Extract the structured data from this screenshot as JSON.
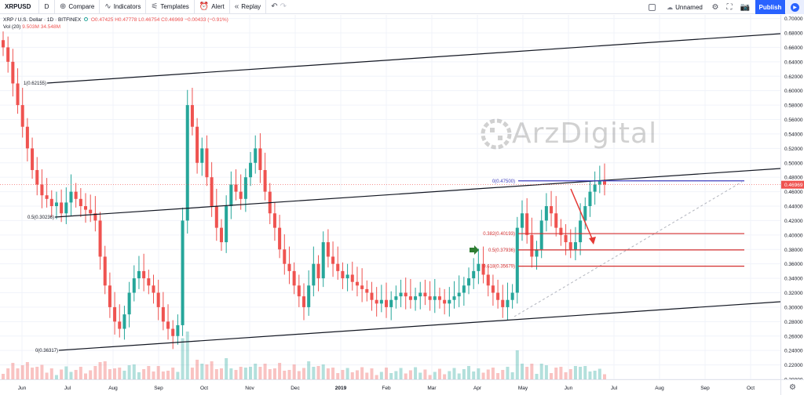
{
  "toolbar": {
    "symbol": "XRPUSD",
    "interval": "D",
    "compare": "Compare",
    "indicators": "Indicators",
    "templates": "Templates",
    "alert": "Alert",
    "replay": "Replay",
    "layout_name": "Unnamed",
    "publish": "Publish"
  },
  "legend": {
    "title": "XRP / U.S. Dollar · 1D · BITFINEX",
    "open": "O0.47425",
    "high": "H0.47778",
    "low": "L0.46754",
    "close": "C0.46969",
    "change": "−0.00433 (−0.91%)",
    "volume_label": "Vol (20)",
    "volume_value": "9.503M",
    "volume_ma": "34.548M"
  },
  "watermark": "ArzDigital",
  "colors": {
    "up": "#26a69a",
    "down": "#ef5350",
    "fib_top": "#3f3fbf",
    "fib": "#d32f2f",
    "channel": "#131722",
    "last_price": "#ef5350"
  },
  "chart_data": {
    "type": "candlestick",
    "symbol": "XRP / U.S. Dollar",
    "interval": "1D",
    "exchange": "BITFINEX",
    "time_labels": [
      "Jun",
      "Jul",
      "Aug",
      "Sep",
      "Oct",
      "Nov",
      "Dec",
      "2019",
      "Feb",
      "Mar",
      "Apr",
      "May",
      "Jun",
      "Jul",
      "Aug",
      "Sep",
      "Oct"
    ],
    "price_labels": [
      "0.70000",
      "0.68000",
      "0.66000",
      "0.64000",
      "0.62000",
      "0.60000",
      "0.58000",
      "0.56000",
      "0.54000",
      "0.52000",
      "0.50000",
      "0.48000",
      "0.46000",
      "0.44000",
      "0.42000",
      "0.40000",
      "0.38000",
      "0.36000",
      "0.34000",
      "0.32000",
      "0.30000",
      "0.28000",
      "0.26000",
      "0.24000",
      "0.22000",
      "0.20000"
    ],
    "ylim": [
      0.2,
      0.705
    ],
    "last_price": "0.46969",
    "close_series": [
      0.66,
      0.64,
      0.61,
      0.58,
      0.55,
      0.52,
      0.49,
      0.47,
      0.455,
      0.45,
      0.44,
      0.445,
      0.43,
      0.445,
      0.46,
      0.45,
      0.44,
      0.435,
      0.43,
      0.42,
      0.37,
      0.33,
      0.3,
      0.28,
      0.27,
      0.29,
      0.32,
      0.34,
      0.35,
      0.34,
      0.33,
      0.32,
      0.3,
      0.28,
      0.27,
      0.26,
      0.275,
      0.42,
      0.58,
      0.55,
      0.5,
      0.52,
      0.48,
      0.44,
      0.41,
      0.39,
      0.44,
      0.47,
      0.46,
      0.45,
      0.48,
      0.5,
      0.52,
      0.49,
      0.46,
      0.43,
      0.41,
      0.38,
      0.36,
      0.35,
      0.33,
      0.315,
      0.3,
      0.33,
      0.36,
      0.34,
      0.39,
      0.37,
      0.36,
      0.35,
      0.34,
      0.345,
      0.335,
      0.33,
      0.325,
      0.32,
      0.31,
      0.305,
      0.31,
      0.3,
      0.31,
      0.315,
      0.32,
      0.315,
      0.31,
      0.315,
      0.32,
      0.315,
      0.31,
      0.315,
      0.31,
      0.305,
      0.31,
      0.315,
      0.32,
      0.33,
      0.34,
      0.35,
      0.36,
      0.345,
      0.33,
      0.32,
      0.31,
      0.3,
      0.31,
      0.32,
      0.41,
      0.43,
      0.4,
      0.37,
      0.38,
      0.42,
      0.44,
      0.43,
      0.41,
      0.4,
      0.39,
      0.38,
      0.39,
      0.42,
      0.44,
      0.46,
      0.47,
      0.475,
      0.47
    ],
    "fibonacci": [
      {
        "label": "0(0.47500)",
        "value": 0.475
      },
      {
        "label": "0.382(0.40193)",
        "value": 0.40193
      },
      {
        "label": "0.5(0.37936)",
        "value": 0.37936
      },
      {
        "label": "0.618(0.35679)",
        "value": 0.35679
      }
    ],
    "channel_labels": [
      {
        "label": "1(0.62155)",
        "value": 0.62155
      },
      {
        "label": "0.5(0.30236)",
        "value": 0.30236
      },
      {
        "label": "0(0.36317)",
        "value": 0.36317
      }
    ]
  }
}
